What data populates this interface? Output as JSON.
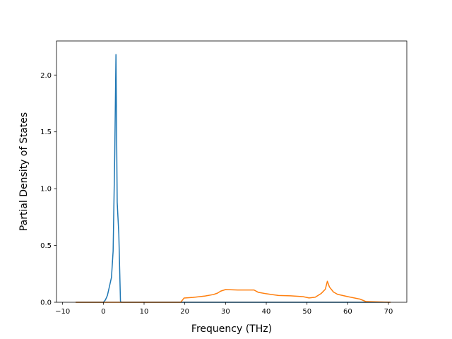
{
  "chart_data": {
    "type": "line",
    "title": "",
    "xlabel": "Frequency (THz)",
    "ylabel": "Partial Density of States",
    "xlim": [
      -11.5,
      74.5
    ],
    "ylim": [
      0,
      2.3
    ],
    "xticks": [
      -10,
      0,
      10,
      20,
      30,
      40,
      50,
      60,
      70
    ],
    "yticks": [
      0.0,
      0.5,
      1.0,
      1.5,
      2.0
    ],
    "xtick_labels": [
      "−10",
      "0",
      "10",
      "20",
      "30",
      "40",
      "50",
      "60",
      "70"
    ],
    "ytick_labels": [
      "0.0",
      "0.5",
      "1.0",
      "1.5",
      "2.0"
    ],
    "grid": false,
    "legend": "none",
    "series": [
      {
        "color": "#1f77b4",
        "x": [
          -6.8,
          0.0,
          0.5,
          1.0,
          1.5,
          2.0,
          2.4,
          2.8,
          3.1,
          3.4,
          3.8,
          4.2,
          4.4,
          70.5
        ],
        "y": [
          0.0,
          0.0,
          0.02,
          0.06,
          0.14,
          0.22,
          0.45,
          1.3,
          2.18,
          0.88,
          0.6,
          0.01,
          0.0,
          0.0
        ]
      },
      {
        "color": "#ff7f0e",
        "x": [
          -6.8,
          19.0,
          19.8,
          22.0,
          25.0,
          27.0,
          28.0,
          28.8,
          30.0,
          33.0,
          37.0,
          38.0,
          40.0,
          43.0,
          46.0,
          49.0,
          50.5,
          52.0,
          53.5,
          54.5,
          55.0,
          55.5,
          56.5,
          57.5,
          60.0,
          63.0,
          64.5,
          70.5
        ],
        "y": [
          0.0,
          0.0,
          0.037,
          0.043,
          0.055,
          0.068,
          0.08,
          0.098,
          0.112,
          0.108,
          0.108,
          0.088,
          0.075,
          0.06,
          0.057,
          0.05,
          0.038,
          0.044,
          0.078,
          0.115,
          0.185,
          0.135,
          0.09,
          0.07,
          0.05,
          0.028,
          0.006,
          0.0
        ]
      }
    ]
  }
}
